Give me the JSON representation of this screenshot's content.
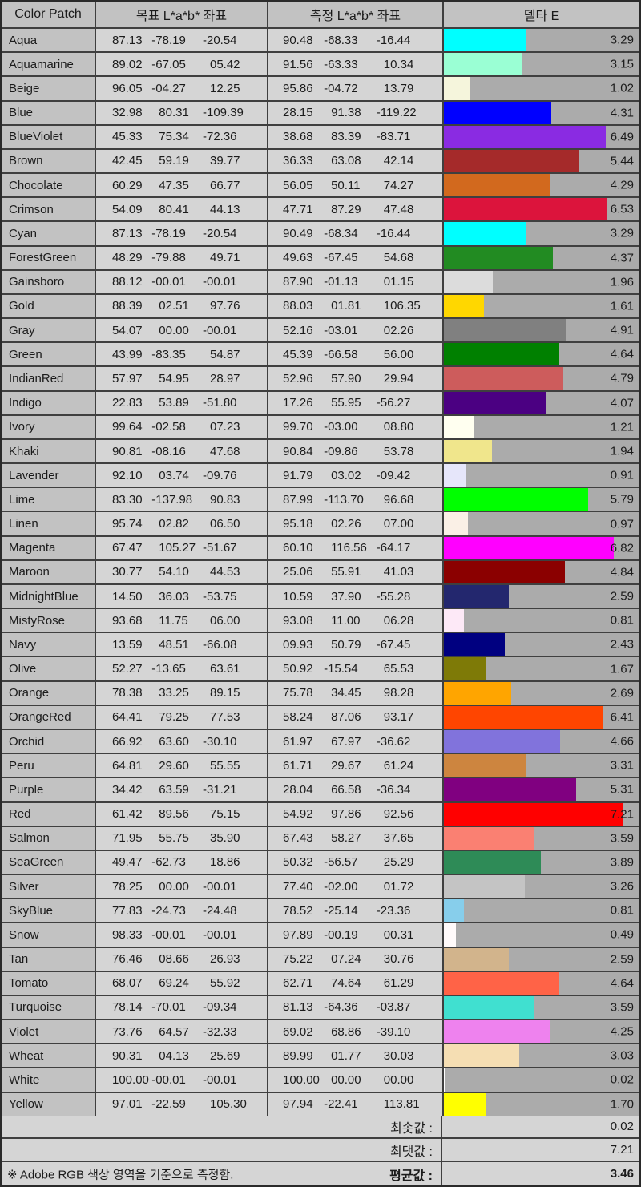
{
  "header": {
    "col_patch": "Color Patch",
    "col_target": "목표 L*a*b* 좌표",
    "col_measured": "측정 L*a*b* 좌표",
    "col_delta": "델타 E"
  },
  "rows": [
    {
      "name": "Aqua",
      "target": [
        "87.13",
        "-78.19",
        "-20.54"
      ],
      "measured": [
        "90.48",
        "-68.33",
        "-16.44"
      ],
      "delta_e": "3.29",
      "bar_color": "#00FFFF"
    },
    {
      "name": "Aquamarine",
      "target": [
        "89.02",
        "-67.05",
        "05.42"
      ],
      "measured": [
        "91.56",
        "-63.33",
        "10.34"
      ],
      "delta_e": "3.15",
      "bar_color": "#9AFFD4"
    },
    {
      "name": "Beige",
      "target": [
        "96.05",
        "-04.27",
        "12.25"
      ],
      "measured": [
        "95.86",
        "-04.72",
        "13.79"
      ],
      "delta_e": "1.02",
      "bar_color": "#F5F5DC"
    },
    {
      "name": "Blue",
      "target": [
        "32.98",
        "80.31",
        "-109.39"
      ],
      "measured": [
        "28.15",
        "91.38",
        "-119.22"
      ],
      "delta_e": "4.31",
      "bar_color": "#0000FF"
    },
    {
      "name": "BlueViolet",
      "target": [
        "45.33",
        "75.34",
        "-72.36"
      ],
      "measured": [
        "38.68",
        "83.39",
        "-83.71"
      ],
      "delta_e": "6.49",
      "bar_color": "#8A2BE2"
    },
    {
      "name": "Brown",
      "target": [
        "42.45",
        "59.19",
        "39.77"
      ],
      "measured": [
        "36.33",
        "63.08",
        "42.14"
      ],
      "delta_e": "5.44",
      "bar_color": "#A52A2A"
    },
    {
      "name": "Chocolate",
      "target": [
        "60.29",
        "47.35",
        "66.77"
      ],
      "measured": [
        "56.05",
        "50.11",
        "74.27"
      ],
      "delta_e": "4.29",
      "bar_color": "#D2691E"
    },
    {
      "name": "Crimson",
      "target": [
        "54.09",
        "80.41",
        "44.13"
      ],
      "measured": [
        "47.71",
        "87.29",
        "47.48"
      ],
      "delta_e": "6.53",
      "bar_color": "#DC143C"
    },
    {
      "name": "Cyan",
      "target": [
        "87.13",
        "-78.19",
        "-20.54"
      ],
      "measured": [
        "90.49",
        "-68.34",
        "-16.44"
      ],
      "delta_e": "3.29",
      "bar_color": "#00FFFF"
    },
    {
      "name": "ForestGreen",
      "target": [
        "48.29",
        "-79.88",
        "49.71"
      ],
      "measured": [
        "49.63",
        "-67.45",
        "54.68"
      ],
      "delta_e": "4.37",
      "bar_color": "#228B22"
    },
    {
      "name": "Gainsboro",
      "target": [
        "88.12",
        "-00.01",
        "-00.01"
      ],
      "measured": [
        "87.90",
        "-01.13",
        "01.15"
      ],
      "delta_e": "1.96",
      "bar_color": "#DCDCDC"
    },
    {
      "name": "Gold",
      "target": [
        "88.39",
        "02.51",
        "97.76"
      ],
      "measured": [
        "88.03",
        "01.81",
        "106.35"
      ],
      "delta_e": "1.61",
      "bar_color": "#FFD700"
    },
    {
      "name": "Gray",
      "target": [
        "54.07",
        "00.00",
        "-00.01"
      ],
      "measured": [
        "52.16",
        "-03.01",
        "02.26"
      ],
      "delta_e": "4.91",
      "bar_color": "#808080"
    },
    {
      "name": "Green",
      "target": [
        "43.99",
        "-83.35",
        "54.87"
      ],
      "measured": [
        "45.39",
        "-66.58",
        "56.00"
      ],
      "delta_e": "4.64",
      "bar_color": "#008000"
    },
    {
      "name": "IndianRed",
      "target": [
        "57.97",
        "54.95",
        "28.97"
      ],
      "measured": [
        "52.96",
        "57.90",
        "29.94"
      ],
      "delta_e": "4.79",
      "bar_color": "#CD5C5C"
    },
    {
      "name": "Indigo",
      "target": [
        "22.83",
        "53.89",
        "-51.80"
      ],
      "measured": [
        "17.26",
        "55.95",
        "-56.27"
      ],
      "delta_e": "4.07",
      "bar_color": "#4B0082"
    },
    {
      "name": "Ivory",
      "target": [
        "99.64",
        "-02.58",
        "07.23"
      ],
      "measured": [
        "99.70",
        "-03.00",
        "08.80"
      ],
      "delta_e": "1.21",
      "bar_color": "#FFFFF0"
    },
    {
      "name": "Khaki",
      "target": [
        "90.81",
        "-08.16",
        "47.68"
      ],
      "measured": [
        "90.84",
        "-09.86",
        "53.78"
      ],
      "delta_e": "1.94",
      "bar_color": "#F0E68C"
    },
    {
      "name": "Lavender",
      "target": [
        "92.10",
        "03.74",
        "-09.76"
      ],
      "measured": [
        "91.79",
        "03.02",
        "-09.42"
      ],
      "delta_e": "0.91",
      "bar_color": "#E6E6FA"
    },
    {
      "name": "Lime",
      "target": [
        "83.30",
        "-137.98",
        "90.83"
      ],
      "measured": [
        "87.99",
        "-113.70",
        "96.68"
      ],
      "delta_e": "5.79",
      "bar_color": "#00FF00"
    },
    {
      "name": "Linen",
      "target": [
        "95.74",
        "02.82",
        "06.50"
      ],
      "measured": [
        "95.18",
        "02.26",
        "07.00"
      ],
      "delta_e": "0.97",
      "bar_color": "#FAF0E6"
    },
    {
      "name": "Magenta",
      "target": [
        "67.47",
        "105.27",
        "-51.67"
      ],
      "measured": [
        "60.10",
        "116.56",
        "-64.17"
      ],
      "delta_e": "6.82",
      "bar_color": "#FF00FF"
    },
    {
      "name": "Maroon",
      "target": [
        "30.77",
        "54.10",
        "44.53"
      ],
      "measured": [
        "25.06",
        "55.91",
        "41.03"
      ],
      "delta_e": "4.84",
      "bar_color": "#8B0000"
    },
    {
      "name": "MidnightBlue",
      "target": [
        "14.50",
        "36.03",
        "-53.75"
      ],
      "measured": [
        "10.59",
        "37.90",
        "-55.28"
      ],
      "delta_e": "2.59",
      "bar_color": "#23276E"
    },
    {
      "name": "MistyRose",
      "target": [
        "93.68",
        "11.75",
        "06.00"
      ],
      "measured": [
        "93.08",
        "11.00",
        "06.28"
      ],
      "delta_e": "0.81",
      "bar_color": "#FDE9F7"
    },
    {
      "name": "Navy",
      "target": [
        "13.59",
        "48.51",
        "-66.08"
      ],
      "measured": [
        "09.93",
        "50.79",
        "-67.45"
      ],
      "delta_e": "2.43",
      "bar_color": "#000080"
    },
    {
      "name": "Olive",
      "target": [
        "52.27",
        "-13.65",
        "63.61"
      ],
      "measured": [
        "50.92",
        "-15.54",
        "65.53"
      ],
      "delta_e": "1.67",
      "bar_color": "#7E7A07"
    },
    {
      "name": "Orange",
      "target": [
        "78.38",
        "33.25",
        "89.15"
      ],
      "measured": [
        "75.78",
        "34.45",
        "98.28"
      ],
      "delta_e": "2.69",
      "bar_color": "#FFA500"
    },
    {
      "name": "OrangeRed",
      "target": [
        "64.41",
        "79.25",
        "77.53"
      ],
      "measured": [
        "58.24",
        "87.06",
        "93.17"
      ],
      "delta_e": "6.41",
      "bar_color": "#FF4500"
    },
    {
      "name": "Orchid",
      "target": [
        "66.92",
        "63.60",
        "-30.10"
      ],
      "measured": [
        "61.97",
        "67.97",
        "-36.62"
      ],
      "delta_e": "4.66",
      "bar_color": "#8173DC"
    },
    {
      "name": "Peru",
      "target": [
        "64.81",
        "29.60",
        "55.55"
      ],
      "measured": [
        "61.71",
        "29.67",
        "61.24"
      ],
      "delta_e": "3.31",
      "bar_color": "#CD853F"
    },
    {
      "name": "Purple",
      "target": [
        "34.42",
        "63.59",
        "-31.21"
      ],
      "measured": [
        "28.04",
        "66.58",
        "-36.34"
      ],
      "delta_e": "5.31",
      "bar_color": "#800080"
    },
    {
      "name": "Red",
      "target": [
        "61.42",
        "89.56",
        "75.15"
      ],
      "measured": [
        "54.92",
        "97.86",
        "92.56"
      ],
      "delta_e": "7.21",
      "bar_color": "#FF0000"
    },
    {
      "name": "Salmon",
      "target": [
        "71.95",
        "55.75",
        "35.90"
      ],
      "measured": [
        "67.43",
        "58.27",
        "37.65"
      ],
      "delta_e": "3.59",
      "bar_color": "#FA8072"
    },
    {
      "name": "SeaGreen",
      "target": [
        "49.47",
        "-62.73",
        "18.86"
      ],
      "measured": [
        "50.32",
        "-56.57",
        "25.29"
      ],
      "delta_e": "3.89",
      "bar_color": "#2E8B57"
    },
    {
      "name": "Silver",
      "target": [
        "78.25",
        "00.00",
        "-00.01"
      ],
      "measured": [
        "77.40",
        "-02.00",
        "01.72"
      ],
      "delta_e": "3.26",
      "bar_color": "#C4C4C4"
    },
    {
      "name": "SkyBlue",
      "target": [
        "77.83",
        "-24.73",
        "-24.48"
      ],
      "measured": [
        "78.52",
        "-25.14",
        "-23.36"
      ],
      "delta_e": "0.81",
      "bar_color": "#87CEEB"
    },
    {
      "name": "Snow",
      "target": [
        "98.33",
        "-00.01",
        "-00.01"
      ],
      "measured": [
        "97.89",
        "-00.19",
        "00.31"
      ],
      "delta_e": "0.49",
      "bar_color": "#FFFAFA"
    },
    {
      "name": "Tan",
      "target": [
        "76.46",
        "08.66",
        "26.93"
      ],
      "measured": [
        "75.22",
        "07.24",
        "30.76"
      ],
      "delta_e": "2.59",
      "bar_color": "#D2B48C"
    },
    {
      "name": "Tomato",
      "target": [
        "68.07",
        "69.24",
        "55.92"
      ],
      "measured": [
        "62.71",
        "74.64",
        "61.29"
      ],
      "delta_e": "4.64",
      "bar_color": "#FF6347"
    },
    {
      "name": "Turquoise",
      "target": [
        "78.14",
        "-70.01",
        "-09.34"
      ],
      "measured": [
        "81.13",
        "-64.36",
        "-03.87"
      ],
      "delta_e": "3.59",
      "bar_color": "#40E0D0"
    },
    {
      "name": "Violet",
      "target": [
        "73.76",
        "64.57",
        "-32.33"
      ],
      "measured": [
        "69.02",
        "68.86",
        "-39.10"
      ],
      "delta_e": "4.25",
      "bar_color": "#EE82EE"
    },
    {
      "name": "Wheat",
      "target": [
        "90.31",
        "04.13",
        "25.69"
      ],
      "measured": [
        "89.99",
        "01.77",
        "30.03"
      ],
      "delta_e": "3.03",
      "bar_color": "#F5DEB3"
    },
    {
      "name": "White",
      "target": [
        "100.00",
        "-00.01",
        "-00.01"
      ],
      "measured": [
        "100.00",
        "00.00",
        "00.00"
      ],
      "delta_e": "0.02",
      "bar_color": "#FFFFFF"
    },
    {
      "name": "Yellow",
      "target": [
        "97.01",
        "-22.59",
        "105.30"
      ],
      "measured": [
        "97.94",
        "-22.41",
        "113.81"
      ],
      "delta_e": "1.70",
      "bar_color": "#FFFF00"
    }
  ],
  "summary": {
    "min_label": "최솟값 :",
    "min_value": "0.02",
    "max_label": "최댓값 :",
    "max_value": "7.21",
    "mean_label": "평균값 :",
    "mean_value": "3.46",
    "note": "※ Adobe RGB 색상 영역을 기준으로 측정함."
  },
  "colors": {
    "delta_column_bg": "#ABABAB",
    "cell_bg": "#D5D5D5",
    "label_bg": "#C2C2C2",
    "grid_line": "#3F3F3F"
  },
  "chart_data": {
    "type": "bar",
    "title": "델타 E",
    "orientation": "horizontal",
    "categories": [
      "Aqua",
      "Aquamarine",
      "Beige",
      "Blue",
      "BlueViolet",
      "Brown",
      "Chocolate",
      "Crimson",
      "Cyan",
      "ForestGreen",
      "Gainsboro",
      "Gold",
      "Gray",
      "Green",
      "IndianRed",
      "Indigo",
      "Ivory",
      "Khaki",
      "Lavender",
      "Lime",
      "Linen",
      "Magenta",
      "Maroon",
      "MidnightBlue",
      "MistyRose",
      "Navy",
      "Olive",
      "Orange",
      "OrangeRed",
      "Orchid",
      "Peru",
      "Purple",
      "Red",
      "Salmon",
      "SeaGreen",
      "Silver",
      "SkyBlue",
      "Snow",
      "Tan",
      "Tomato",
      "Turquoise",
      "Violet",
      "Wheat",
      "White",
      "Yellow"
    ],
    "values": [
      3.29,
      3.15,
      1.02,
      4.31,
      6.49,
      5.44,
      4.29,
      6.53,
      3.29,
      4.37,
      1.96,
      1.61,
      4.91,
      4.64,
      4.79,
      4.07,
      1.21,
      1.94,
      0.91,
      5.79,
      0.97,
      6.82,
      4.84,
      2.59,
      0.81,
      2.43,
      1.67,
      2.69,
      6.41,
      4.66,
      3.31,
      5.31,
      7.21,
      3.59,
      3.89,
      3.26,
      0.81,
      0.49,
      2.59,
      4.64,
      3.59,
      4.25,
      3.03,
      0.02,
      1.7
    ],
    "xlabel": "델타 E",
    "ylabel": "Color Patch",
    "xlim": [
      0,
      7.9
    ],
    "grid": false,
    "legend": false,
    "summary": {
      "min": 0.02,
      "max": 7.21,
      "mean": 3.46
    }
  }
}
